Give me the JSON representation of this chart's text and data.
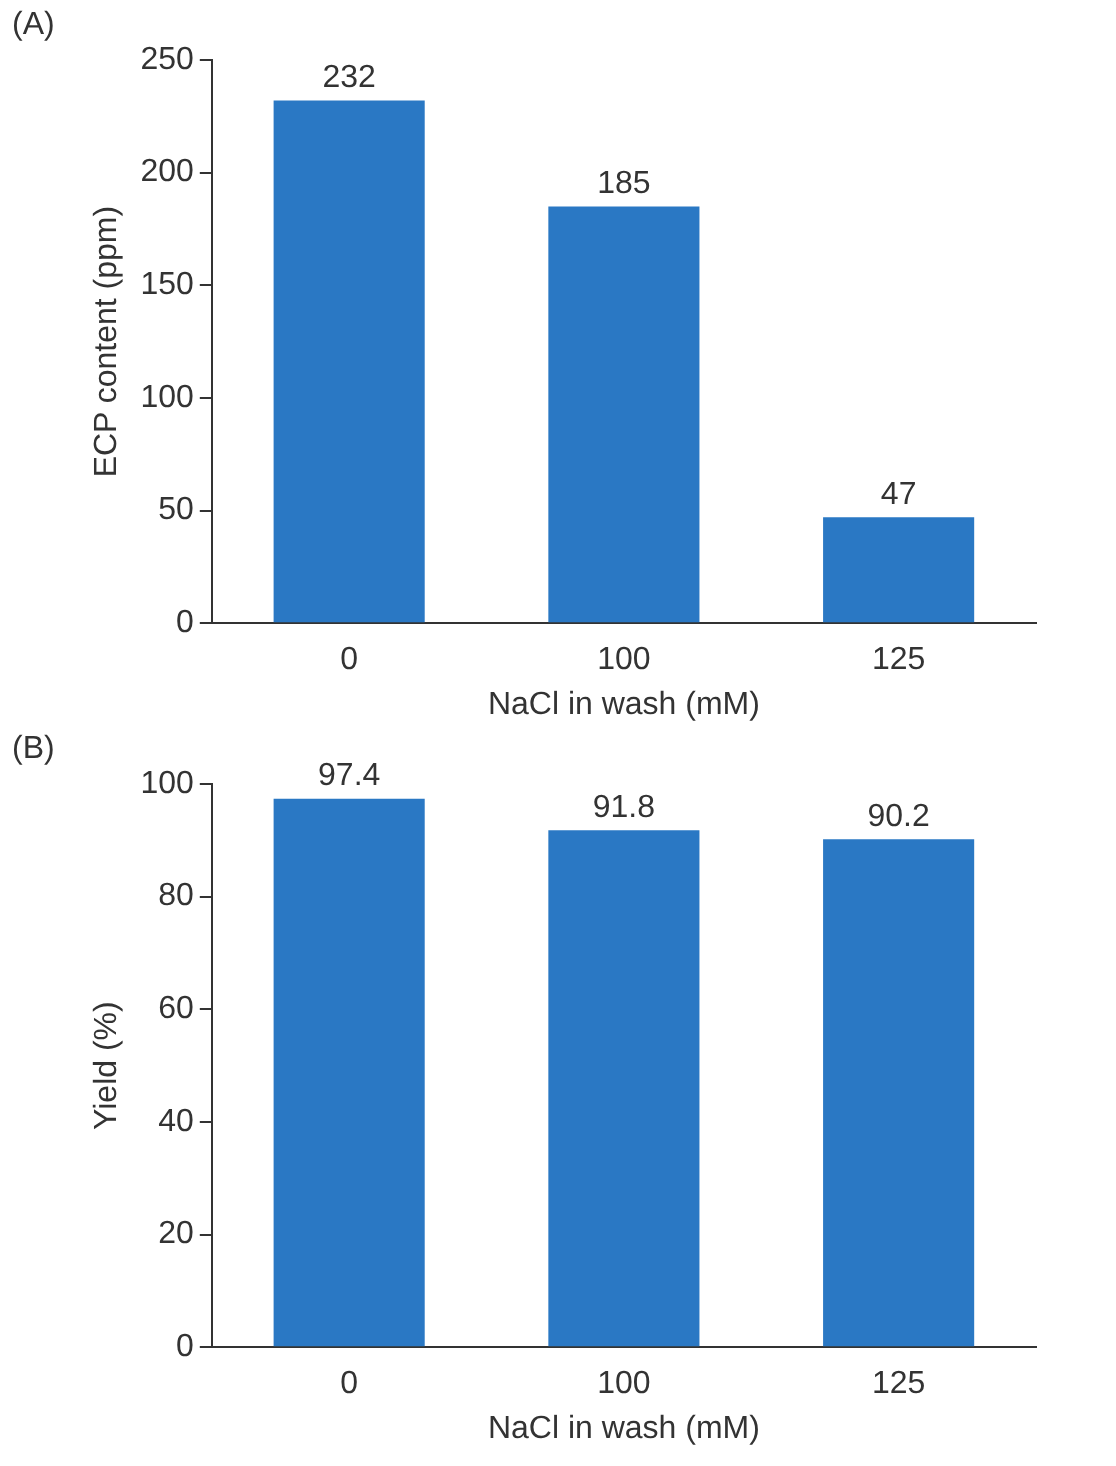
{
  "chart_data": [
    {
      "type": "bar",
      "annotations": [
        "(A)"
      ],
      "xlabel": "NaCl in wash (mM)",
      "ylabel": "ECP content (ppm)",
      "categories": [
        "0",
        "100",
        "125"
      ],
      "values": [
        232,
        185,
        47
      ],
      "color": "#2a78c4",
      "ylim": [
        0,
        250
      ],
      "yticks": [
        0,
        50,
        100,
        150,
        200,
        250
      ],
      "grid": false,
      "legend": false,
      "data_labels": true
    },
    {
      "type": "bar",
      "annotations": [
        "(B)"
      ],
      "xlabel": "NaCl in wash (mM)",
      "ylabel": "Yield (%)",
      "categories": [
        "0",
        "100",
        "125"
      ],
      "values": [
        97.4,
        91.8,
        90.2
      ],
      "color": "#2a78c4",
      "ylim": [
        0,
        100
      ],
      "yticks": [
        0,
        20,
        40,
        60,
        80,
        100
      ],
      "grid": false,
      "legend": false,
      "data_labels": true
    }
  ]
}
